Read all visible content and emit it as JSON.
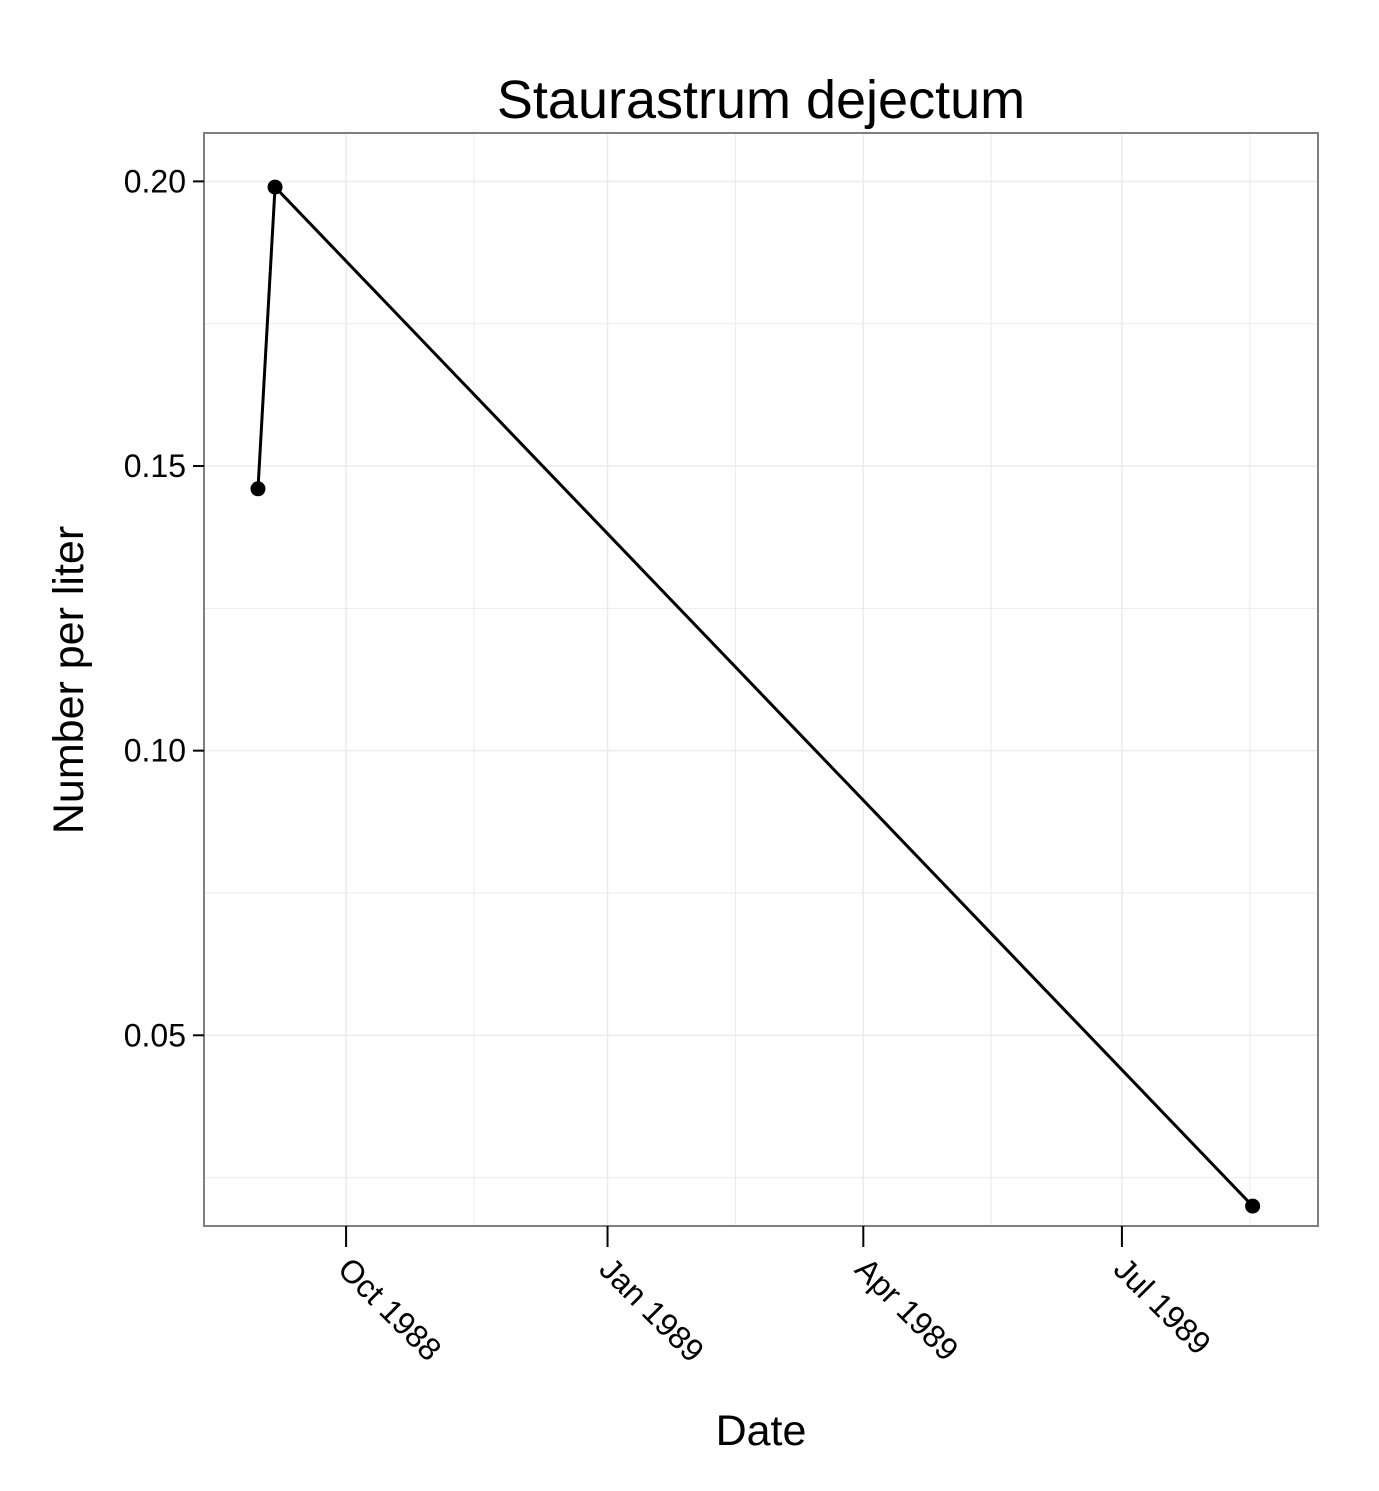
{
  "chart_data": {
    "type": "line",
    "title": "Staurastrum dejectum",
    "xlabel": "Date",
    "ylabel": "Number per liter",
    "x_scale": "date",
    "xlim": [
      "1988-08-12",
      "1989-09-08"
    ],
    "ylim": [
      0.0165,
      0.2085
    ],
    "x_ticks": [
      {
        "date": "1988-10-01",
        "label": "Oct 1988"
      },
      {
        "date": "1989-01-01",
        "label": "Jan 1989"
      },
      {
        "date": "1989-04-01",
        "label": "Apr 1989"
      },
      {
        "date": "1989-07-01",
        "label": "Jul 1989"
      }
    ],
    "x_minor_ticks": [
      "1988-11-15",
      "1989-02-15",
      "1989-05-16",
      "1989-08-15"
    ],
    "y_ticks": [
      {
        "value": 0.05,
        "label": "0.05"
      },
      {
        "value": 0.1,
        "label": "0.10"
      },
      {
        "value": 0.15,
        "label": "0.15"
      },
      {
        "value": 0.2,
        "label": "0.20"
      }
    ],
    "y_minor_ticks": [
      0.025,
      0.075,
      0.125,
      0.175
    ],
    "grid": true,
    "series": [
      {
        "points": [
          {
            "x": "1988-08-31",
            "y": 0.146
          },
          {
            "x": "1988-09-06",
            "y": 0.199
          },
          {
            "x": "1989-08-16",
            "y": 0.02
          }
        ]
      }
    ],
    "colors": {
      "line": "#000000",
      "point": "#000000",
      "grid": "#ebebeb",
      "panel_border": "#7f7f7f",
      "axis_tick": "#000000"
    }
  }
}
